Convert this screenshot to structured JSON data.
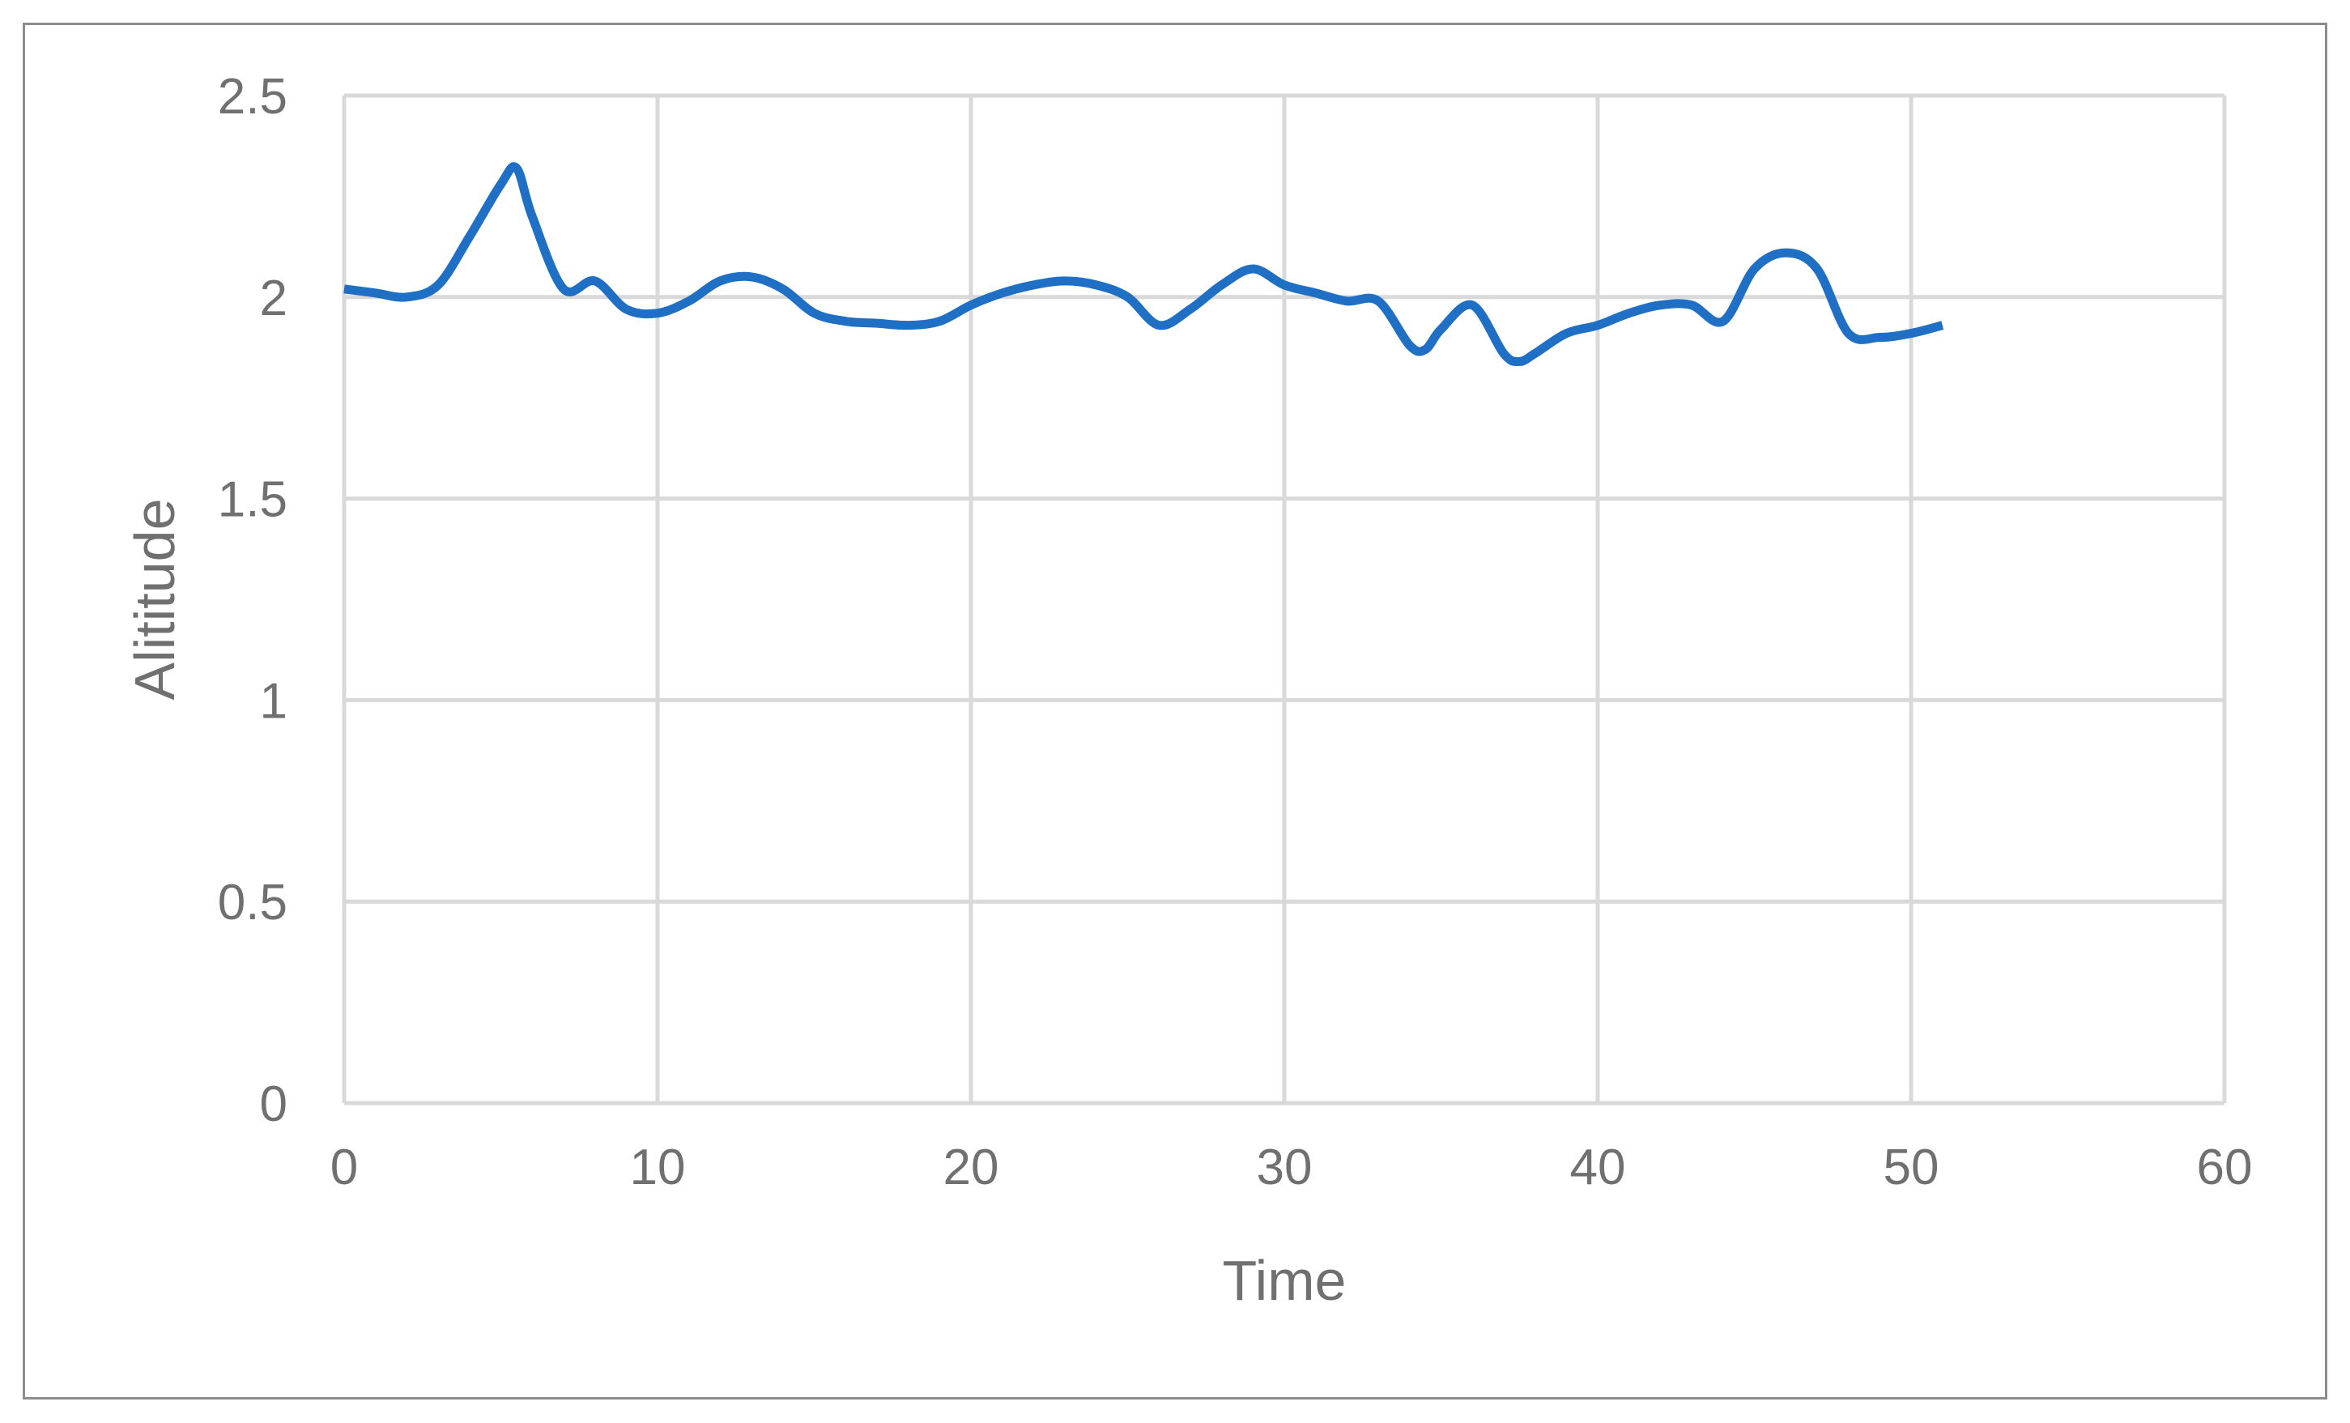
{
  "chart_data": {
    "type": "line",
    "title": "",
    "xlabel": "Time",
    "ylabel": "Alititude",
    "xlim": [
      0,
      60
    ],
    "ylim": [
      0,
      2.5
    ],
    "x_ticks": [
      "0",
      "10",
      "20",
      "30",
      "40",
      "50",
      "60"
    ],
    "y_ticks": [
      "0",
      "0.5",
      "1",
      "1.5",
      "2",
      "2.5"
    ],
    "grid": true,
    "legend": "none",
    "colors": {
      "line": "#1f6fc5",
      "grid": "#d9d9d9",
      "text": "#707070",
      "frame": "#8c8c8c"
    },
    "series": [
      {
        "x": [
          0,
          1,
          2,
          3,
          4,
          5,
          5.5,
          6,
          7,
          8,
          9,
          10,
          11,
          12,
          13,
          14,
          15,
          16,
          17,
          18,
          19,
          20,
          21,
          22,
          23,
          24,
          25,
          26,
          27,
          28,
          29,
          30,
          31,
          32,
          33,
          34,
          34.5,
          35,
          36,
          37,
          37.5,
          38,
          39,
          40,
          41,
          42,
          43,
          44,
          45,
          46,
          47,
          48,
          49,
          50,
          51
        ],
        "y": [
          2.02,
          2.01,
          2.0,
          2.03,
          2.15,
          2.28,
          2.32,
          2.2,
          2.02,
          2.04,
          1.97,
          1.96,
          1.99,
          2.04,
          2.05,
          2.02,
          1.96,
          1.94,
          1.935,
          1.93,
          1.94,
          1.98,
          2.01,
          2.03,
          2.04,
          2.03,
          2.0,
          1.93,
          1.97,
          2.03,
          2.07,
          2.03,
          2.01,
          1.99,
          1.99,
          1.88,
          1.87,
          1.92,
          1.98,
          1.86,
          1.84,
          1.86,
          1.91,
          1.93,
          1.96,
          1.98,
          1.98,
          1.94,
          2.07,
          2.11,
          2.07,
          1.91,
          1.9,
          1.91,
          1.93
        ]
      }
    ]
  }
}
